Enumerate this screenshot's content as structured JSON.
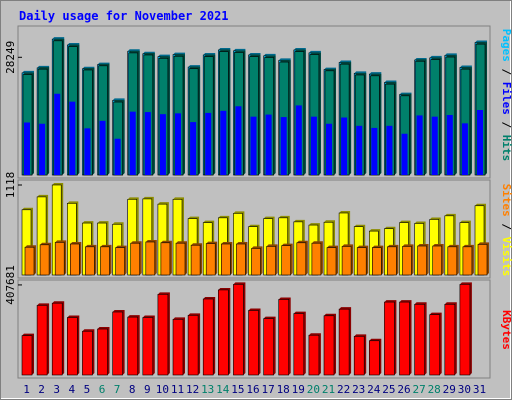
{
  "chart_data": [
    {
      "type": "bar",
      "title": "Daily usage for November 2021",
      "panel": "hits-files-pages",
      "categories": [
        "1",
        "2",
        "3",
        "4",
        "5",
        "6",
        "7",
        "8",
        "9",
        "10",
        "11",
        "12",
        "13",
        "14",
        "15",
        "16",
        "17",
        "18",
        "19",
        "20",
        "21",
        "22",
        "23",
        "24",
        "25",
        "26",
        "27",
        "28",
        "29",
        "30",
        "31"
      ],
      "y_tick_label": "28249",
      "y_tick_value": 28249,
      "ylim": [
        0,
        36000
      ],
      "axis_label_parts": [
        "Pages",
        "/",
        "Files",
        "/",
        "Hits"
      ],
      "series": [
        {
          "name": "Hits",
          "color": "#00c0ff",
          "values": [
            24500,
            25700,
            32600,
            31200,
            25500,
            26500,
            17900,
            29700,
            29100,
            28400,
            28900,
            25900,
            28800,
            30000,
            29800,
            28800,
            28600,
            27500,
            30000,
            29300,
            25300,
            27000,
            24400,
            24200,
            22200,
            19300,
            27600,
            28100,
            28700,
            25800,
            31800
          ]
        },
        {
          "name": "Files",
          "color": "#00806b",
          "values": [
            24100,
            25400,
            32200,
            30800,
            25200,
            26200,
            17500,
            29300,
            28800,
            28000,
            28500,
            25500,
            28400,
            29600,
            29400,
            28400,
            28200,
            27100,
            29600,
            28900,
            25000,
            26600,
            24000,
            23800,
            21800,
            19000,
            27300,
            27700,
            28300,
            25400,
            31400
          ]
        },
        {
          "name": "Pages",
          "color": "#0000ff",
          "values": [
            12600,
            12300,
            19500,
            17600,
            11200,
            13000,
            8700,
            15200,
            15100,
            14600,
            14800,
            12700,
            14900,
            15400,
            16500,
            14000,
            14500,
            13900,
            16700,
            14000,
            12300,
            13800,
            11800,
            11300,
            11800,
            9900,
            14300,
            14000,
            14400,
            12400,
            15600
          ]
        }
      ]
    },
    {
      "type": "bar",
      "panel": "visits-sites",
      "categories": [
        "1",
        "2",
        "3",
        "4",
        "5",
        "6",
        "7",
        "8",
        "9",
        "10",
        "11",
        "12",
        "13",
        "14",
        "15",
        "16",
        "17",
        "18",
        "19",
        "20",
        "21",
        "22",
        "23",
        "24",
        "25",
        "26",
        "27",
        "28",
        "29",
        "30",
        "31"
      ],
      "y_tick_label": "1118",
      "y_tick_value": 1118,
      "ylim": [
        0,
        1180
      ],
      "axis_label_parts": [
        "Sites",
        "/",
        "Visits"
      ],
      "series": [
        {
          "name": "Visits",
          "color": "#ffff00",
          "values": [
            810,
            970,
            1118,
            890,
            645,
            645,
            630,
            940,
            945,
            880,
            940,
            700,
            650,
            710,
            765,
            600,
            700,
            710,
            660,
            620,
            655,
            770,
            600,
            545,
            575,
            650,
            640,
            690,
            735,
            650,
            860
          ]
        },
        {
          "name": "Sites",
          "color": "#ff8000",
          "values": [
            345,
            375,
            405,
            385,
            350,
            350,
            340,
            395,
            410,
            400,
            395,
            370,
            390,
            385,
            385,
            330,
            355,
            365,
            400,
            395,
            340,
            355,
            340,
            340,
            350,
            355,
            360,
            360,
            350,
            350,
            380
          ]
        }
      ]
    },
    {
      "type": "bar",
      "panel": "kbytes",
      "categories": [
        "1",
        "2",
        "3",
        "4",
        "5",
        "6",
        "7",
        "8",
        "9",
        "10",
        "11",
        "12",
        "13",
        "14",
        "15",
        "16",
        "17",
        "18",
        "19",
        "20",
        "21",
        "22",
        "23",
        "24",
        "25",
        "26",
        "27",
        "28",
        "29",
        "30",
        "31"
      ],
      "y_tick_label": "407681",
      "y_tick_value": 407681,
      "ylim": [
        0,
        430000
      ],
      "axis_label_parts": [
        "KBytes"
      ],
      "series": [
        {
          "name": "KBytes",
          "color": "#ff0000",
          "values": [
            178000,
            315000,
            325000,
            260000,
            198000,
            208000,
            285000,
            262000,
            260000,
            365000,
            252000,
            270000,
            344000,
            385000,
            410000,
            292000,
            255000,
            342000,
            278000,
            180000,
            268000,
            298000,
            175000,
            155000,
            330000,
            330000,
            320000,
            273000,
            320000,
            410000,
            0
          ]
        }
      ]
    }
  ],
  "x_axis": {
    "labels": [
      "1",
      "2",
      "3",
      "4",
      "5",
      "6",
      "7",
      "8",
      "9",
      "10",
      "11",
      "12",
      "13",
      "14",
      "15",
      "16",
      "17",
      "18",
      "19",
      "20",
      "21",
      "22",
      "23",
      "24",
      "25",
      "26",
      "27",
      "28",
      "29",
      "30",
      "31"
    ],
    "weekend_color": "#00806b",
    "weekday_color": "#000080",
    "weekend_days": [
      "6",
      "7",
      "13",
      "14",
      "20",
      "21",
      "27",
      "28"
    ]
  },
  "colors": {
    "frame_background": "#c0c0c0",
    "panel_background": "#c0c0c0",
    "title_color": "#0000ff",
    "separator_color": "#000000"
  }
}
